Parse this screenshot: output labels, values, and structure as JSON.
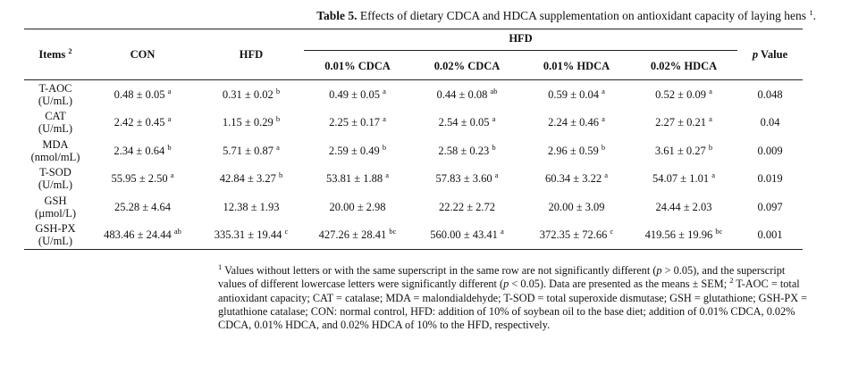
{
  "title": {
    "label": "Table 5.",
    "text": "Effects of dietary CDCA and HDCA supplementation on antioxidant capacity of laying hens",
    "sup": "1"
  },
  "header": {
    "items": "Items",
    "items_sup": "2",
    "con": "CON",
    "hfd": "HFD",
    "hfd_group": "HFD",
    "sub": [
      "0.01% CDCA",
      "0.02% CDCA",
      "0.01% HDCA",
      "0.02% HDCA"
    ],
    "p_italic": "p",
    "p_rest": " Value"
  },
  "rows": [
    {
      "item": "T-AOC",
      "unit": "(U/mL)",
      "cells": [
        [
          "0.48 ± 0.05",
          "a"
        ],
        [
          "0.31 ± 0.02",
          "b"
        ],
        [
          "0.49 ± 0.05",
          "a"
        ],
        [
          "0.44 ± 0.08",
          "ab"
        ],
        [
          "0.59 ± 0.04",
          "a"
        ],
        [
          "0.52 ± 0.09",
          "a"
        ]
      ],
      "p": "0.048"
    },
    {
      "item": "CAT",
      "unit": "(U/mL)",
      "cells": [
        [
          "2.42 ± 0.45",
          "a"
        ],
        [
          "1.15 ± 0.29",
          "b"
        ],
        [
          "2.25 ± 0.17",
          "a"
        ],
        [
          "2.54 ± 0.05",
          "a"
        ],
        [
          "2.24 ± 0.46",
          "a"
        ],
        [
          "2.27 ± 0.21",
          "a"
        ]
      ],
      "p": "0.04"
    },
    {
      "item": "MDA",
      "unit": "(nmol/mL)",
      "cells": [
        [
          "2.34 ± 0.64",
          "b"
        ],
        [
          "5.71 ± 0.87",
          "a"
        ],
        [
          "2.59 ± 0.49",
          "b"
        ],
        [
          "2.58 ± 0.23",
          "b"
        ],
        [
          "2.96 ± 0.59",
          "b"
        ],
        [
          "3.61 ± 0.27",
          "b"
        ]
      ],
      "p": "0.009"
    },
    {
      "item": "T-SOD",
      "unit": "(U/mL)",
      "cells": [
        [
          "55.95 ± 2.50",
          "a"
        ],
        [
          "42.84 ± 3.27",
          "b"
        ],
        [
          "53.81 ± 1.88",
          "a"
        ],
        [
          "57.83 ± 3.60",
          "a"
        ],
        [
          "60.34 ± 3.22",
          "a"
        ],
        [
          "54.07 ± 1.01",
          "a"
        ]
      ],
      "p": "0.019"
    },
    {
      "item": "GSH",
      "unit": "(µmol/L)",
      "cells": [
        [
          "25.28 ± 4.64",
          ""
        ],
        [
          "12.38 ± 1.93",
          ""
        ],
        [
          "20.00 ± 2.98",
          ""
        ],
        [
          "22.22 ± 2.72",
          ""
        ],
        [
          "20.00 ± 3.09",
          ""
        ],
        [
          "24.44 ± 2.03",
          ""
        ]
      ],
      "p": "0.097"
    },
    {
      "item": "GSH-PX",
      "unit": "(U/mL)",
      "cells": [
        [
          "483.46 ± 24.44",
          "ab"
        ],
        [
          "335.31 ± 19.44",
          "c"
        ],
        [
          "427.26 ± 28.41",
          "bc"
        ],
        [
          "560.00 ± 43.41",
          "a"
        ],
        [
          "372.35 ± 72.66",
          "c"
        ],
        [
          "419.56 ± 19.96",
          "bc"
        ]
      ],
      "p": "0.001"
    }
  ],
  "footnote": {
    "s1": "1",
    "t1": " Values without letters or with the same superscript in the same row are not significantly different (",
    "p1": "p",
    "t2": " > 0.05), and the superscript values of different lowercase letters were significantly different (",
    "p2": "p",
    "t3": " < 0.05). Data are presented as the means ± SEM; ",
    "s2": "2",
    "t4": " T-AOC = total antioxidant capacity; CAT = catalase; MDA = malondialdehyde; T-SOD = total superoxide dismutase; GSH = glutathione; GSH-PX = glutathione catalase; CON: normal control, HFD: addition of 10% of soybean oil to the base diet; addition of 0.01% CDCA, 0.02% CDCA, 0.01% HDCA, and 0.02% HDCA of 10% to the HFD, respectively."
  }
}
